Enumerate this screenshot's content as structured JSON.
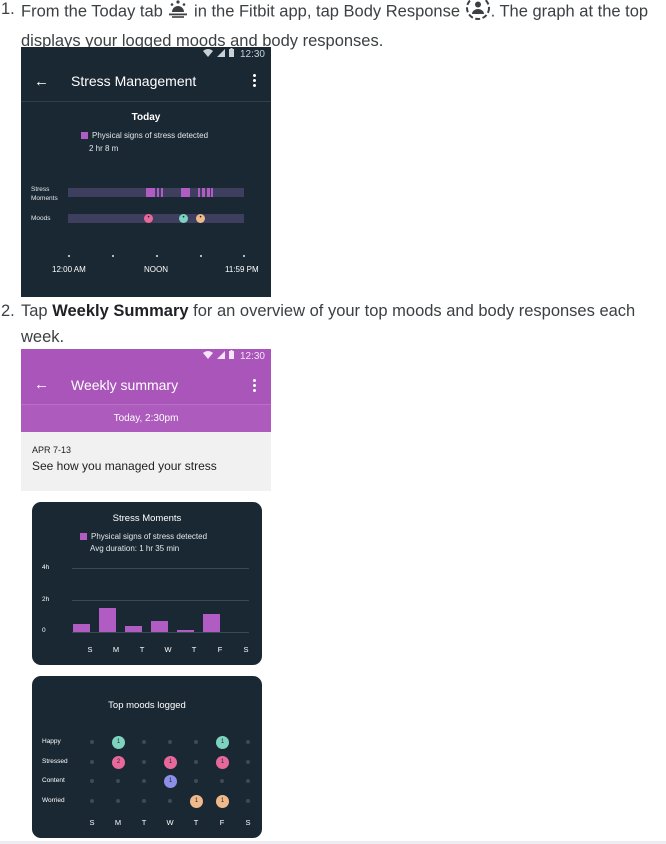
{
  "steps": [
    {
      "number": "1.",
      "text_a": "From the Today tab ",
      "text_b": " in the Fitbit app, tap Body Response ",
      "text_c": ". The graph at the top displays your logged moods and body responses.",
      "icon_1": "today-tab-icon",
      "icon_2": "body-response-icon"
    },
    {
      "number": "2.",
      "text_a": "Tap ",
      "bold": "Weekly Summary",
      "text_b": " for an overview of your top moods and body responses each week."
    }
  ],
  "status_bar": {
    "time": "12:30",
    "icons": [
      "wifi-icon",
      "signal-icon",
      "battery-icon"
    ]
  },
  "screen1": {
    "title": "Stress Management",
    "section": "Today",
    "legend": "Physical signs of stress detected",
    "duration": "2 hr 8 m",
    "rows": {
      "stress": [
        "Stress",
        "Moments"
      ],
      "moods": "Moods"
    },
    "time_labels": [
      "12:00 AM",
      "NOON",
      "11:59 PM"
    ],
    "colors": {
      "bg": "#1a2833",
      "stress": "#b05cc2",
      "track": "#3e3f5e"
    }
  },
  "screen2": {
    "title": "Weekly summary",
    "band": "Today, 2:30pm",
    "date_range": "APR 7-13",
    "message": "See how you managed your stress",
    "accent": "#a955b9"
  },
  "stress_card": {
    "title": "Stress Moments",
    "legend": "Physical signs of stress detected",
    "avg": "Avg duration: 1 hr 35 min"
  },
  "chart_data": {
    "type": "bar",
    "title": "Stress Moments",
    "categories": [
      "S",
      "M",
      "T",
      "W",
      "T",
      "F",
      "S"
    ],
    "values": [
      0.5,
      1.5,
      0.35,
      0.7,
      0.08,
      1.1,
      0
    ],
    "ylabel": "",
    "yticks": [
      "4h",
      "2h",
      "0"
    ],
    "ylim": [
      0,
      4
    ],
    "series_name": "Physical signs of stress detected",
    "bar_color": "#b05cc2"
  },
  "moods_card": {
    "title": "Top moods logged",
    "days": [
      "S",
      "M",
      "T",
      "W",
      "T",
      "F",
      "S"
    ],
    "rows": [
      {
        "label": "Happy",
        "color": "#7dd3c0",
        "counts": [
          0,
          1,
          0,
          0,
          0,
          1,
          0
        ]
      },
      {
        "label": "Stressed",
        "color": "#e9689c",
        "counts": [
          0,
          2,
          0,
          1,
          0,
          1,
          0
        ]
      },
      {
        "label": "Content",
        "color": "#8c8fe8",
        "counts": [
          0,
          0,
          0,
          1,
          0,
          0,
          0
        ]
      },
      {
        "label": "Worried",
        "color": "#f0b98a",
        "counts": [
          0,
          0,
          0,
          0,
          1,
          1,
          0
        ]
      }
    ]
  }
}
